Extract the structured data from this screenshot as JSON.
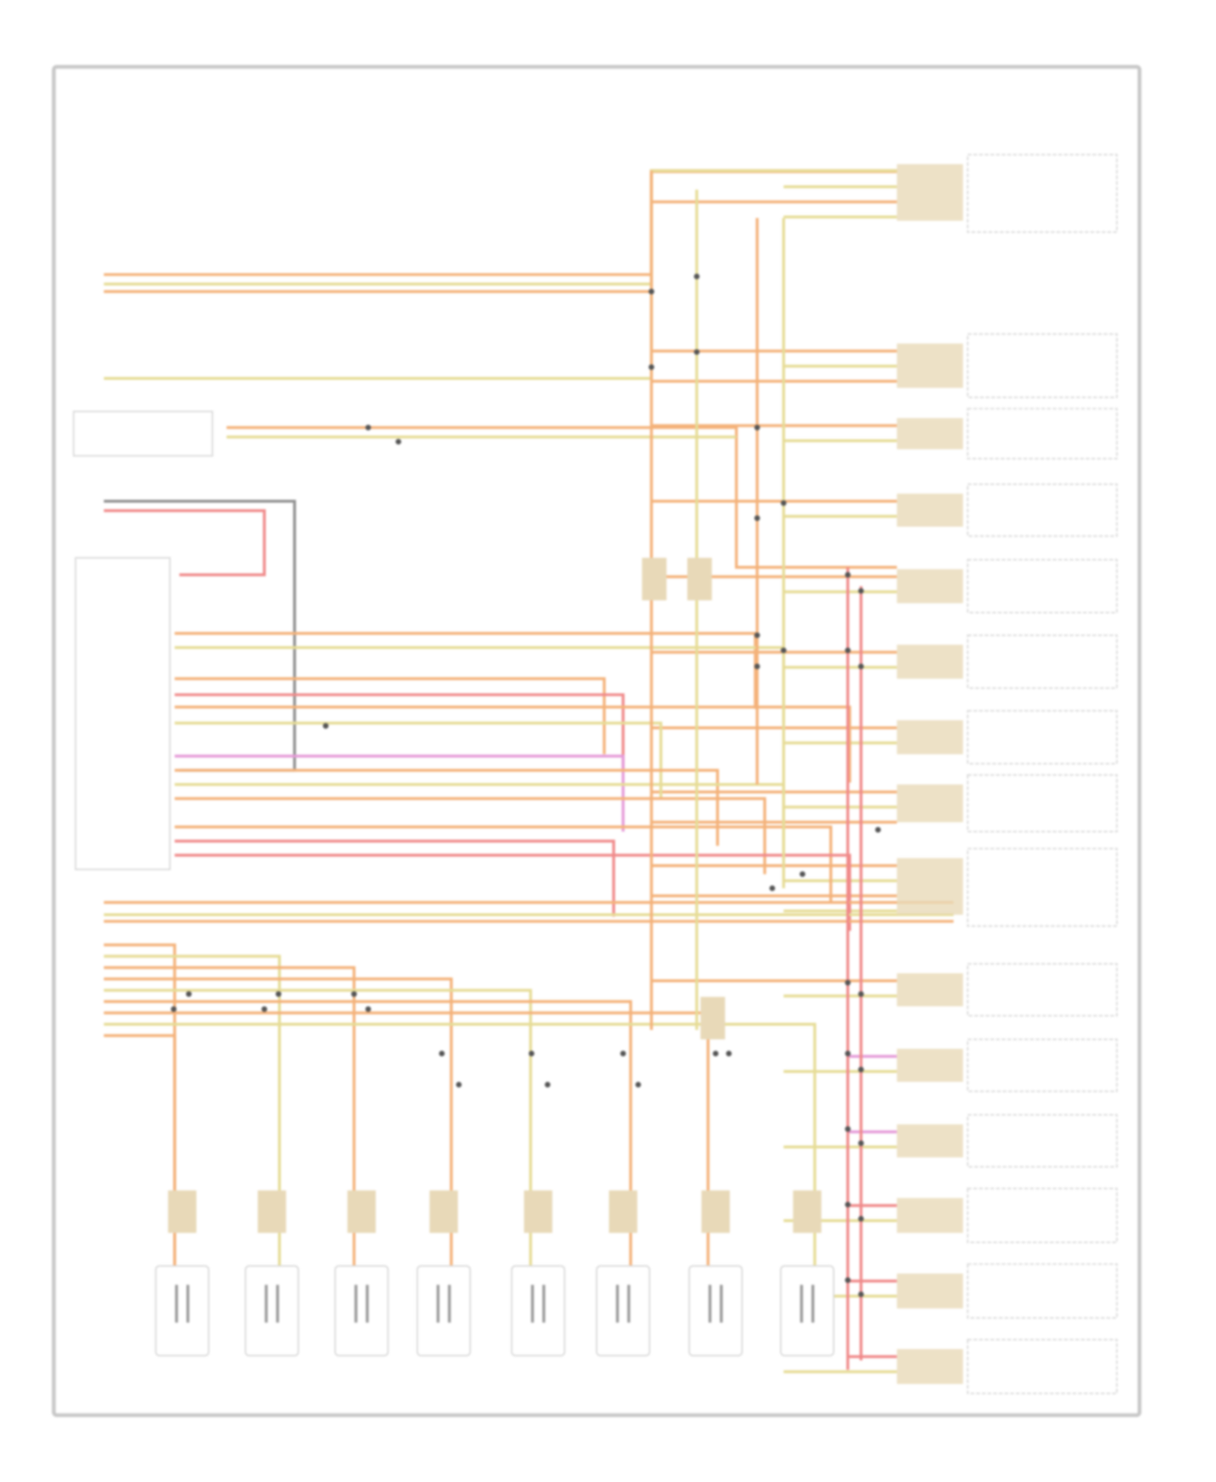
{
  "diagram": {
    "colors": {
      "frame": "#c8c8c8",
      "wire_orange": "#f4b27a",
      "wire_yellow": "#e6dc96",
      "wire_red": "#f08a8a",
      "wire_pink": "#e59ad8",
      "wire_gray": "#909090",
      "connector": "#e8d9b8",
      "box_border": "#d8d8d8",
      "junction": "#555555"
    }
  }
}
